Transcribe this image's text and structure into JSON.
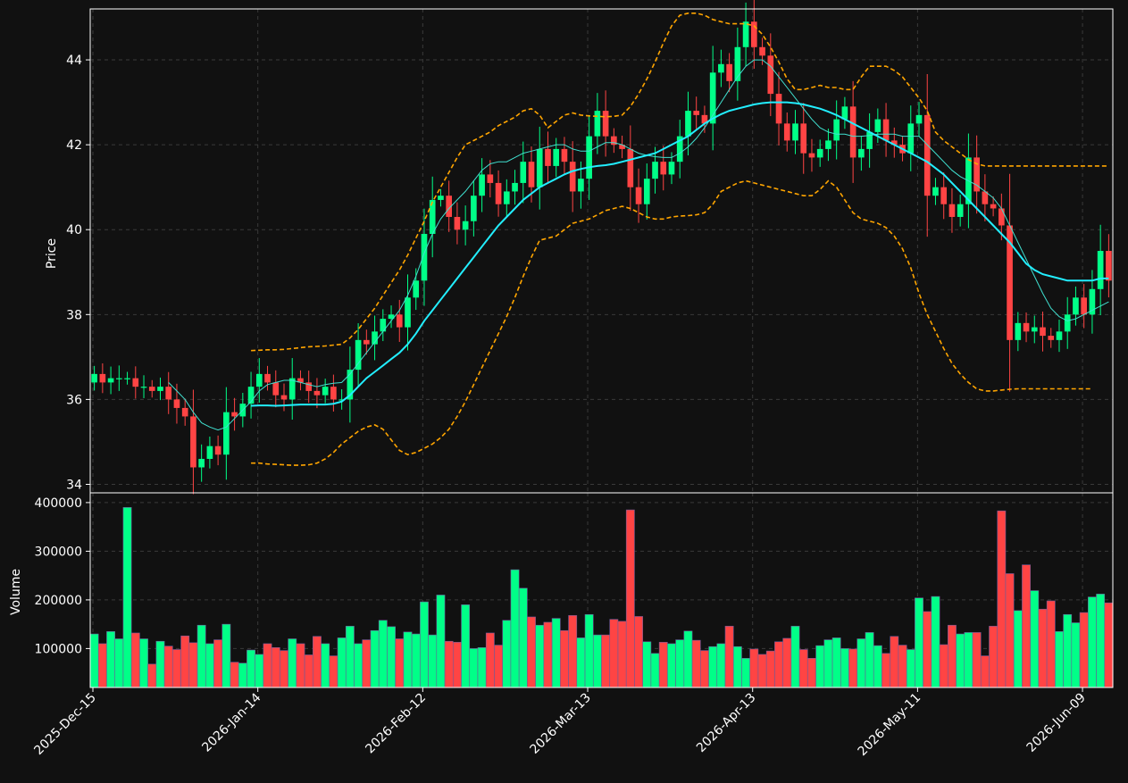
{
  "colors": {
    "background": "#111111",
    "panel_border": "#ffffff",
    "grid": "#3a3a3a",
    "text": "#ffffff",
    "up": "#00ff88",
    "down": "#ff4444",
    "volume_edge": "#6b5b9a",
    "ma_fast": "#40e0d0",
    "ma_slow": "#22eeff",
    "bollinger": "#ffa500"
  },
  "chart_data": {
    "type": "candlestick",
    "price_panel": {
      "ylabel": "Price",
      "ylim": [
        33.8,
        45.2
      ],
      "yticks": [
        34,
        36,
        38,
        40,
        42,
        44
      ],
      "ytick_labels": [
        "34",
        "36",
        "38",
        "40",
        "42",
        "44"
      ]
    },
    "volume_panel": {
      "ylabel": "Volume",
      "ylim": [
        20000,
        420000
      ],
      "yticks": [
        100000,
        200000,
        300000,
        400000
      ],
      "ytick_labels": [
        "100000",
        "200000",
        "300000",
        "400000"
      ]
    },
    "x_tick_labels": [
      "2025-Dec-15",
      "2026-Jan-14",
      "2026-Feb-12",
      "2026-Mar-13",
      "2026-Apr-13",
      "2026-May-11",
      "2026-Jun-09"
    ],
    "x_tick_indices": [
      0,
      20,
      40,
      60,
      80,
      100,
      120
    ],
    "n_bars": 124,
    "closes": [
      36.6,
      36.4,
      36.5,
      36.5,
      36.5,
      36.3,
      36.3,
      36.2,
      36.3,
      36.0,
      35.8,
      35.6,
      34.4,
      34.6,
      34.9,
      34.7,
      35.7,
      35.6,
      35.9,
      36.3,
      36.6,
      36.4,
      36.1,
      36.0,
      36.5,
      36.4,
      36.2,
      36.1,
      36.3,
      36.0,
      36.0,
      36.7,
      37.4,
      37.3,
      37.6,
      37.9,
      38.0,
      37.7,
      38.4,
      38.8,
      39.9,
      40.7,
      40.8,
      40.3,
      40.0,
      40.2,
      40.8,
      41.3,
      41.1,
      40.6,
      40.9,
      41.1,
      41.6,
      41.0,
      41.9,
      41.5,
      41.9,
      41.6,
      40.9,
      41.2,
      42.2,
      42.8,
      42.2,
      42.0,
      41.9,
      41.0,
      40.6,
      41.2,
      41.6,
      41.3,
      41.6,
      42.2,
      42.8,
      42.7,
      42.5,
      43.7,
      43.9,
      43.5,
      44.3,
      44.9,
      44.3,
      44.1,
      43.2,
      42.5,
      42.1,
      42.5,
      41.8,
      41.7,
      41.9,
      42.1,
      42.6,
      42.9,
      41.7,
      41.9,
      42.3,
      42.6,
      42.1,
      42.0,
      41.8,
      42.5,
      42.7,
      40.8,
      41.0,
      40.6,
      40.3,
      40.6,
      41.7,
      40.9,
      40.6,
      40.5,
      40.1,
      37.4,
      37.8,
      37.6,
      37.7,
      37.5,
      37.4,
      37.6,
      38.0,
      38.4,
      38.0,
      38.6,
      39.5,
      38.8,
      38.8
    ],
    "volume": [
      130000,
      110000,
      135000,
      120000,
      390000,
      132000,
      120000,
      68000,
      115000,
      105000,
      98000,
      126000,
      112000,
      148000,
      110000,
      118000,
      150000,
      72000,
      70000,
      97000,
      88000,
      110000,
      102000,
      96000,
      120000,
      110000,
      87000,
      125000,
      110000,
      85000,
      122000,
      146000,
      110000,
      118000,
      137000,
      158000,
      145000,
      120000,
      134000,
      130000,
      196000,
      128000,
      210000,
      115000,
      113000,
      190000,
      100000,
      102000,
      132000,
      107000,
      158000,
      262000,
      224000,
      165000,
      148000,
      154000,
      162000,
      137000,
      168000,
      122000,
      170000,
      128000,
      128000,
      160000,
      156000,
      385000,
      166000,
      114000,
      90000,
      113000,
      110000,
      118000,
      136000,
      117000,
      96000,
      104000,
      110000,
      146000,
      104000,
      80000,
      99000,
      88000,
      95000,
      114000,
      121000,
      146000,
      98000,
      80000,
      106000,
      118000,
      122000,
      100000,
      99000,
      120000,
      133000,
      106000,
      90000,
      125000,
      107000,
      98000,
      204000,
      176000,
      207000,
      108000,
      148000,
      130000,
      133000,
      133000,
      85000,
      146000,
      383000,
      254000,
      178000,
      272000,
      219000,
      181000,
      198000,
      135000,
      170000,
      153000,
      174000,
      206000,
      212000,
      194000
    ],
    "ma_fast": [
      null,
      null,
      null,
      null,
      null,
      null,
      null,
      null,
      null,
      36.4,
      36.2,
      36.0,
      35.7,
      35.45,
      35.35,
      35.28,
      35.35,
      35.55,
      35.75,
      35.95,
      36.2,
      36.35,
      36.4,
      36.45,
      36.45,
      36.4,
      36.35,
      36.3,
      36.35,
      36.38,
      36.4,
      36.6,
      36.85,
      37.1,
      37.35,
      37.6,
      37.85,
      38.1,
      38.45,
      38.9,
      39.45,
      39.9,
      40.25,
      40.5,
      40.7,
      40.9,
      41.15,
      41.4,
      41.55,
      41.6,
      41.6,
      41.7,
      41.8,
      41.85,
      41.9,
      41.95,
      42.0,
      42.0,
      41.9,
      41.85,
      41.85,
      41.95,
      42.05,
      42.05,
      42.0,
      41.9,
      41.8,
      41.75,
      41.72,
      41.7,
      41.7,
      41.8,
      41.95,
      42.15,
      42.4,
      42.7,
      43.0,
      43.3,
      43.6,
      43.85,
      44.0,
      44.0,
      43.85,
      43.6,
      43.35,
      43.1,
      42.85,
      42.6,
      42.4,
      42.3,
      42.25,
      42.25,
      42.2,
      42.2,
      42.22,
      42.25,
      42.25,
      42.25,
      42.2,
      42.2,
      42.2,
      42.0,
      41.8,
      41.6,
      41.4,
      41.25,
      41.15,
      41.05,
      40.9,
      40.75,
      40.5,
      40.1,
      39.7,
      39.3,
      38.9,
      38.5,
      38.15,
      37.95,
      37.85,
      37.9,
      38.0,
      38.1,
      38.2,
      38.3
    ],
    "ma_slow": [
      null,
      null,
      null,
      null,
      null,
      null,
      null,
      null,
      null,
      null,
      null,
      null,
      null,
      null,
      null,
      null,
      null,
      null,
      null,
      35.85,
      35.86,
      35.86,
      35.85,
      35.86,
      35.87,
      35.88,
      35.88,
      35.88,
      35.88,
      35.9,
      35.95,
      36.1,
      36.3,
      36.5,
      36.65,
      36.8,
      36.95,
      37.1,
      37.3,
      37.55,
      37.85,
      38.1,
      38.35,
      38.6,
      38.85,
      39.1,
      39.35,
      39.6,
      39.85,
      40.1,
      40.3,
      40.5,
      40.7,
      40.85,
      41.0,
      41.1,
      41.2,
      41.3,
      41.38,
      41.43,
      41.47,
      41.5,
      41.52,
      41.55,
      41.6,
      41.65,
      41.7,
      41.75,
      41.8,
      41.9,
      42.0,
      42.1,
      42.2,
      42.35,
      42.5,
      42.62,
      42.72,
      42.8,
      42.85,
      42.9,
      42.95,
      42.98,
      43.0,
      43.0,
      43.0,
      42.98,
      42.95,
      42.9,
      42.85,
      42.78,
      42.7,
      42.6,
      42.5,
      42.4,
      42.3,
      42.2,
      42.1,
      42.0,
      41.9,
      41.8,
      41.7,
      41.6,
      41.45,
      41.3,
      41.1,
      40.9,
      40.7,
      40.5,
      40.3,
      40.1,
      39.9,
      39.7,
      39.45,
      39.2,
      39.05,
      38.95,
      38.9,
      38.85,
      38.8,
      38.8,
      38.8,
      38.8,
      38.85,
      38.85
    ],
    "bb_upper": [
      null,
      null,
      null,
      null,
      null,
      null,
      null,
      null,
      null,
      null,
      null,
      null,
      null,
      null,
      null,
      null,
      null,
      null,
      null,
      37.15,
      37.16,
      37.17,
      37.17,
      37.18,
      37.2,
      37.22,
      37.24,
      37.25,
      37.26,
      37.28,
      37.3,
      37.45,
      37.65,
      37.9,
      38.15,
      38.45,
      38.75,
      39.05,
      39.4,
      39.8,
      40.2,
      40.65,
      41.0,
      41.35,
      41.7,
      42.0,
      42.1,
      42.2,
      42.3,
      42.45,
      42.55,
      42.65,
      42.8,
      42.85,
      42.7,
      42.4,
      42.55,
      42.7,
      42.75,
      42.7,
      42.68,
      42.67,
      42.66,
      42.67,
      42.7,
      42.9,
      43.2,
      43.55,
      43.95,
      44.4,
      44.8,
      45.05,
      45.1,
      45.1,
      45.05,
      44.95,
      44.9,
      44.85,
      44.85,
      44.85,
      44.8,
      44.6,
      44.3,
      43.95,
      43.55,
      43.3,
      43.3,
      43.35,
      43.4,
      43.35,
      43.35,
      43.3,
      43.3,
      43.6,
      43.85,
      43.85,
      43.85,
      43.75,
      43.6,
      43.35,
      43.1,
      42.8,
      42.3,
      42.1,
      41.95,
      41.8,
      41.65,
      41.55,
      41.5,
      41.5,
      41.5,
      41.5,
      41.5,
      41.5,
      41.5,
      41.5,
      41.5,
      41.5,
      41.5,
      41.5,
      41.5,
      41.5,
      41.5,
      41.5
    ],
    "bb_lower": [
      null,
      null,
      null,
      null,
      null,
      null,
      null,
      null,
      null,
      null,
      null,
      null,
      null,
      null,
      null,
      null,
      null,
      null,
      null,
      34.5,
      34.5,
      34.48,
      34.47,
      34.46,
      34.45,
      34.45,
      34.46,
      34.5,
      34.6,
      34.75,
      34.95,
      35.1,
      35.25,
      35.35,
      35.4,
      35.3,
      35.05,
      34.8,
      34.7,
      34.75,
      34.85,
      34.95,
      35.1,
      35.3,
      35.6,
      35.95,
      36.35,
      36.75,
      37.15,
      37.55,
      37.95,
      38.4,
      38.9,
      39.35,
      39.75,
      39.8,
      39.85,
      40.0,
      40.15,
      40.2,
      40.25,
      40.35,
      40.45,
      40.5,
      40.55,
      40.5,
      40.4,
      40.3,
      40.25,
      40.25,
      40.3,
      40.32,
      40.33,
      40.35,
      40.4,
      40.6,
      40.9,
      41.0,
      41.1,
      41.15,
      41.1,
      41.05,
      41.0,
      40.95,
      40.9,
      40.85,
      40.8,
      40.8,
      40.95,
      41.15,
      41.0,
      40.7,
      40.4,
      40.25,
      40.2,
      40.15,
      40.05,
      39.85,
      39.55,
      39.1,
      38.5,
      38.0,
      37.6,
      37.2,
      36.85,
      36.6,
      36.4,
      36.25,
      36.2,
      36.2,
      36.22,
      36.24,
      36.25,
      36.25,
      36.25,
      36.25,
      36.25,
      36.25,
      36.25,
      36.25,
      36.25,
      36.25
    ]
  }
}
